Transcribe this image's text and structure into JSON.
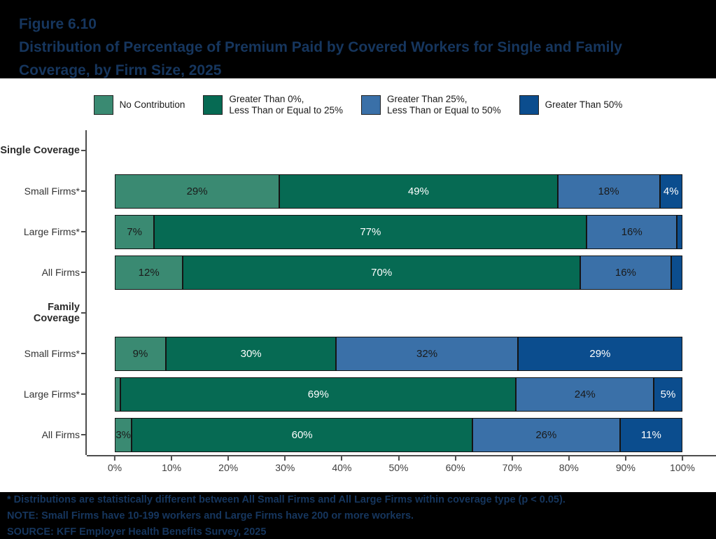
{
  "header": {
    "figure_number": "Figure 6.10",
    "title_line1": "Distribution of Percentage of Premium Paid by Covered Workers for Single and Family",
    "title_line2": "Coverage, by Firm Size, 2025"
  },
  "colors": {
    "no_contribution": "#3a8a72",
    "gt0_le25": "#066a53",
    "gt25_le50": "#3a70a8",
    "gt50": "#0b4d8e",
    "title_text": "#16365e",
    "panel_bg": "#ffffff",
    "page_bg": "#000000"
  },
  "chart_data": {
    "type": "bar",
    "stacked": true,
    "orientation": "horizontal",
    "xlim": [
      0,
      100
    ],
    "x_tick_labels": [
      "0%",
      "10%",
      "20%",
      "30%",
      "40%",
      "50%",
      "60%",
      "70%",
      "80%",
      "90%",
      "100%"
    ],
    "legend_position": "top-center",
    "grid": false,
    "categories": [
      "No Contribution",
      "Greater Than 0%, Less Than or Equal to 25%",
      "Greater Than 25%, Less Than or Equal to 50%",
      "Greater Than 50%"
    ],
    "legend_labels": [
      "No Contribution",
      "Greater Than 0%,\nLess Than or Equal to 25%",
      "Greater Than 25%,\nLess Than or Equal to 50%",
      "Greater Than 50%"
    ],
    "series_colors": [
      "#3a8a72",
      "#066a53",
      "#3a70a8",
      "#0b4d8e"
    ],
    "label_text_colors": [
      "#1a1a1a",
      "#ffffff",
      "#1a1a1a",
      "#ffffff"
    ],
    "groups": [
      {
        "group": "Single Coverage",
        "rows": [
          {
            "label": "Small Firms*",
            "values": [
              29,
              49,
              18,
              4
            ],
            "data_labels": [
              "29%",
              "49%",
              "18%",
              "4%"
            ]
          },
          {
            "label": "Large Firms*",
            "values": [
              7,
              77,
              16,
              1
            ],
            "data_labels": [
              "7%",
              "77%",
              "16%",
              ""
            ]
          },
          {
            "label": "All Firms",
            "values": [
              12,
              70,
              16,
              2
            ],
            "data_labels": [
              "12%",
              "70%",
              "16%",
              ""
            ]
          }
        ]
      },
      {
        "group": "Family Coverage",
        "rows": [
          {
            "label": "Small Firms*",
            "values": [
              9,
              30,
              32,
              29
            ],
            "data_labels": [
              "9%",
              "30%",
              "32%",
              "29%"
            ]
          },
          {
            "label": "Large Firms*",
            "values": [
              1,
              69,
              24,
              5
            ],
            "data_labels": [
              "",
              "69%",
              "24%",
              "5%"
            ]
          },
          {
            "label": "All Firms",
            "values": [
              3,
              60,
              26,
              11
            ],
            "data_labels": [
              "3%",
              "60%",
              "26%",
              "11%"
            ]
          }
        ]
      }
    ]
  },
  "footnotes": [
    "* Distributions are statistically different between All Small Firms and All Large Firms within coverage type (p < 0.05).",
    "NOTE: Small Firms have 10-199 workers and Large Firms have 200 or more workers.",
    "SOURCE: KFF Employer Health Benefits Survey, 2025"
  ]
}
